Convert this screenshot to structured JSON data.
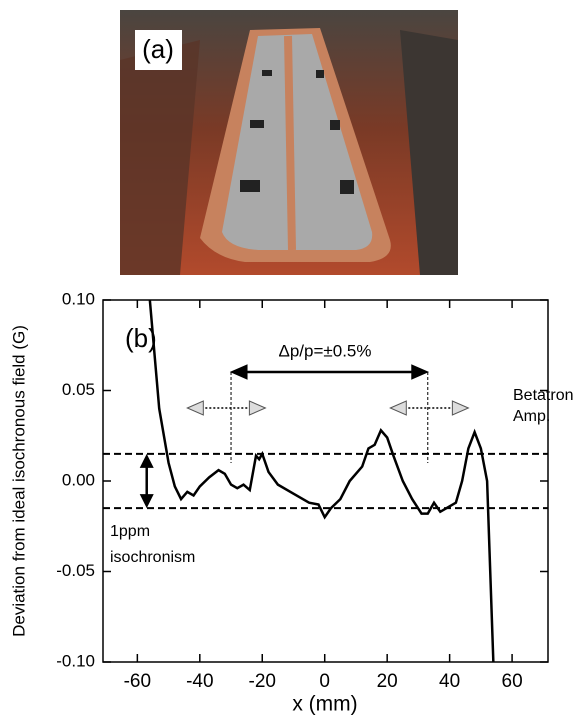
{
  "chart_data": {
    "type": "line",
    "photo_label": "(a)",
    "panel_label": "(b)",
    "xlabel": "x (mm)",
    "ylabel": "Deviation from ideal isochronous field (G)",
    "xlim": [
      -71,
      71.5
    ],
    "ylim": [
      -0.1,
      0.1
    ],
    "xticks": [
      -60,
      -40,
      -20,
      0,
      20,
      40,
      60
    ],
    "yticks": [
      {
        "value": 0.1,
        "label": "0.10"
      },
      {
        "value": 0.05,
        "label": "0.05"
      },
      {
        "value": 0,
        "label": "0.00"
      },
      {
        "value": -0.05,
        "label": "-0.05"
      },
      {
        "value": -0.1,
        "label": "-0.10"
      }
    ],
    "hlines": [
      0.015,
      -0.015
    ],
    "annotations": [
      "Δp/p=±0.5%",
      "Betatron",
      "Amp.",
      "1ppm",
      "isochronism"
    ],
    "series": [
      {
        "color": "#000000",
        "x": [
          -56,
          -53,
          -50,
          -48,
          -46,
          -44,
          -42,
          -40,
          -37,
          -34,
          -32,
          -30,
          -28,
          -26,
          -24,
          -22,
          -21,
          -20,
          -18,
          -15,
          -10,
          -5,
          -2,
          0,
          2,
          5,
          8,
          12,
          14,
          16,
          18,
          20,
          22,
          25,
          28,
          31,
          33,
          35,
          37,
          40,
          42,
          44,
          46,
          48,
          50,
          52,
          53,
          54
        ],
        "values": [
          0.1,
          0.04,
          0.01,
          -0.003,
          -0.01,
          -0.006,
          -0.008,
          -0.003,
          0.002,
          0.006,
          0.004,
          -0.002,
          -0.004,
          -0.002,
          -0.005,
          0.014,
          0.012,
          0.015,
          0.005,
          -0.002,
          -0.007,
          -0.012,
          -0.013,
          -0.02,
          -0.015,
          -0.01,
          0.0,
          0.008,
          0.018,
          0.02,
          0.028,
          0.024,
          0.014,
          0.0,
          -0.01,
          -0.018,
          -0.018,
          -0.012,
          -0.017,
          -0.014,
          -0.012,
          0.0,
          0.018,
          0.027,
          0.018,
          0.0,
          -0.05,
          -0.1
        ]
      }
    ]
  }
}
